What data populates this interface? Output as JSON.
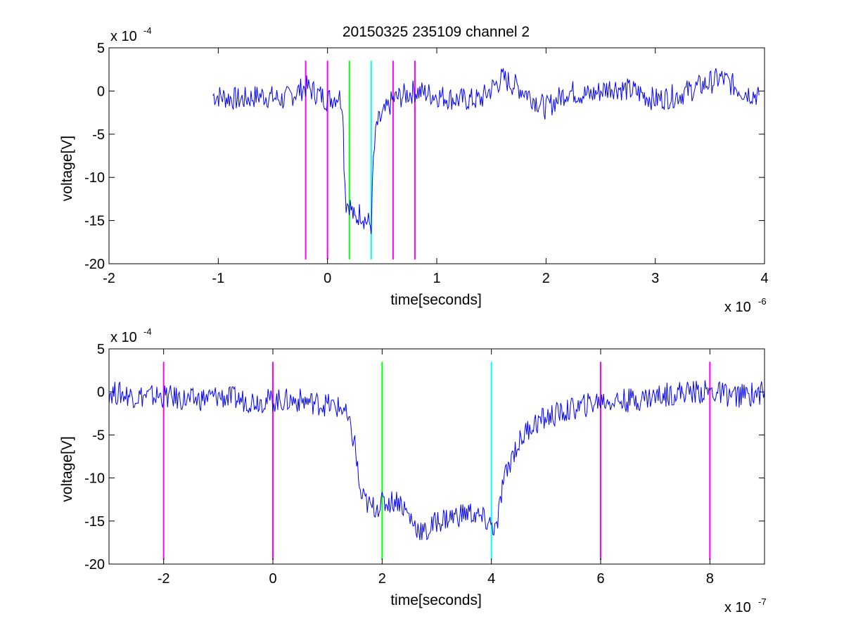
{
  "figure": {
    "title": "20150325 235109 channel 2"
  },
  "chart_data": [
    {
      "type": "line",
      "title": "20150325 235109 channel 2",
      "xlabel": "time[seconds]",
      "ylabel": "voltage[V]",
      "xlim": [
        -2,
        4
      ],
      "ylim": [
        -20,
        5
      ],
      "x_multiplier": {
        "base": "x 10",
        "exp": "-6"
      },
      "y_multiplier": {
        "base": "x 10",
        "exp": "-4"
      },
      "xticks": [
        "-2",
        "-1",
        "0",
        "1",
        "2",
        "3",
        "4"
      ],
      "yticks": [
        "5",
        "0",
        "-5",
        "-10",
        "-15",
        "-20"
      ],
      "grid": false,
      "series": [
        {
          "color": "#0000ff",
          "x": [
            -1.05,
            -0.8,
            -0.6,
            -0.4,
            -0.2,
            0.0,
            0.1,
            0.14,
            0.15,
            0.17,
            0.2,
            0.25,
            0.3,
            0.35,
            0.4,
            0.42,
            0.45,
            0.5,
            0.6,
            0.8,
            1.0,
            1.2,
            1.4,
            1.6,
            1.8,
            2.0,
            2.2,
            2.4,
            2.6,
            2.8,
            3.0,
            3.2,
            3.4,
            3.6,
            3.8,
            3.95
          ],
          "y": [
            -0.5,
            -1.0,
            -0.5,
            -1.0,
            0.5,
            -1.0,
            -0.5,
            -1.5,
            -8.0,
            -13.0,
            -13.0,
            -15.0,
            -14.0,
            -15.0,
            -15.5,
            -8.0,
            -4.0,
            -3.0,
            -1.0,
            0.0,
            -0.5,
            -1.0,
            -1.0,
            1.5,
            0.0,
            -2.0,
            0.0,
            -0.5,
            0.5,
            0.0,
            -1.0,
            -0.5,
            0.5,
            1.5,
            0.0,
            -0.5
          ]
        }
      ],
      "vlines": [
        {
          "x": -0.2,
          "color": "#ff00ff"
        },
        {
          "x": 0.0,
          "color": "#ff00ff"
        },
        {
          "x": 0.2,
          "color": "#00ff00"
        },
        {
          "x": 0.4,
          "color": "#00ffff"
        },
        {
          "x": 0.6,
          "color": "#ff00ff"
        },
        {
          "x": 0.8,
          "color": "#ff00ff"
        }
      ],
      "vline_range": [
        -19.5,
        3.5
      ]
    },
    {
      "type": "line",
      "xlabel": "time[seconds]",
      "ylabel": "voltage[V]",
      "xlim": [
        -3,
        9
      ],
      "ylim": [
        -20,
        5
      ],
      "x_multiplier": {
        "base": "x 10",
        "exp": "-7"
      },
      "y_multiplier": {
        "base": "x 10",
        "exp": "-4"
      },
      "xticks": [
        "-2",
        "0",
        "2",
        "4",
        "6",
        "8"
      ],
      "yticks": [
        "5",
        "0",
        "-5",
        "-10",
        "-15",
        "-20"
      ],
      "grid": false,
      "series": [
        {
          "color": "#0000ff",
          "x": [
            -3.0,
            -2.5,
            -2.0,
            -1.5,
            -1.0,
            -0.5,
            0.0,
            0.5,
            1.0,
            1.3,
            1.5,
            1.6,
            1.8,
            2.0,
            2.3,
            2.6,
            2.8,
            3.0,
            3.3,
            3.6,
            3.9,
            4.1,
            4.2,
            4.4,
            4.7,
            5.0,
            5.5,
            6.0,
            6.5,
            7.0,
            7.5,
            8.0,
            8.5,
            9.0
          ],
          "y": [
            0.0,
            -0.5,
            -0.5,
            -1.0,
            -0.5,
            -1.0,
            -1.0,
            -1.0,
            -1.5,
            -2.0,
            -6.0,
            -12.0,
            -13.5,
            -13.0,
            -12.5,
            -15.5,
            -16.5,
            -15.0,
            -14.5,
            -14.0,
            -15.0,
            -16.0,
            -11.0,
            -7.0,
            -4.0,
            -3.0,
            -2.0,
            -1.0,
            -1.0,
            -0.5,
            0.0,
            0.0,
            -0.5,
            0.0
          ]
        }
      ],
      "vlines": [
        {
          "x": -2,
          "color": "#ff00ff"
        },
        {
          "x": 0,
          "color": "#ff00ff"
        },
        {
          "x": 2,
          "color": "#00ff00"
        },
        {
          "x": 4,
          "color": "#00ffff"
        },
        {
          "x": 6,
          "color": "#ff00ff"
        },
        {
          "x": 8,
          "color": "#ff00ff"
        }
      ],
      "vline_range": [
        -19.5,
        3.5
      ]
    }
  ]
}
